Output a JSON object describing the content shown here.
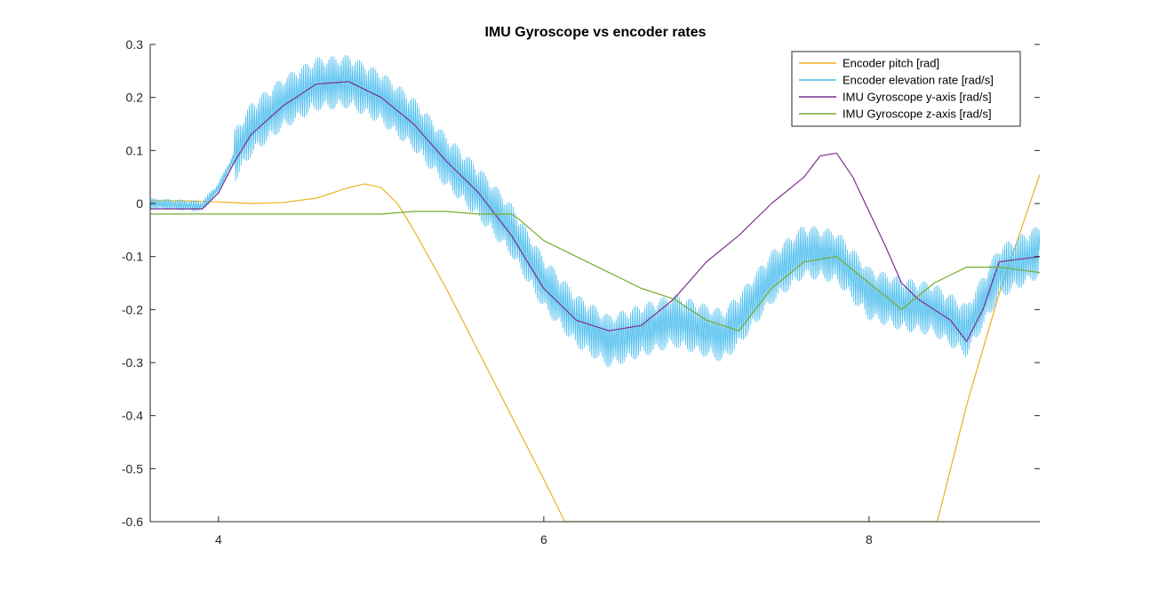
{
  "chart_data": {
    "type": "line",
    "title": "IMU Gyroscope vs encoder rates",
    "xlabel": "",
    "ylabel": "",
    "xlim": [
      3.58,
      9.05
    ],
    "ylim": [
      -0.6,
      0.3
    ],
    "xticks": [
      4,
      6,
      8
    ],
    "yticks": [
      0.3,
      0.2,
      0.1,
      0,
      -0.1,
      -0.2,
      -0.3,
      -0.4,
      -0.5,
      -0.6
    ],
    "xtick_labels": [
      "4",
      "6",
      "8"
    ],
    "ytick_labels": [
      "0.3",
      "0.2",
      "0.1",
      "0",
      "-0.1",
      "-0.2",
      "-0.3",
      "-0.4",
      "-0.5",
      "-0.6"
    ],
    "grid": false,
    "legend_position": "top-right",
    "series": [
      {
        "name": "Encoder pitch [rad]",
        "color": "#EDB120",
        "noise": 0,
        "x": [
          3.58,
          3.8,
          4.0,
          4.2,
          4.4,
          4.6,
          4.8,
          4.9,
          5.0,
          5.1,
          5.2,
          5.4,
          5.6,
          5.8,
          6.0,
          6.13,
          8.42,
          8.6,
          8.8,
          9.05
        ],
        "y": [
          0.005,
          0.005,
          0.003,
          0.0,
          0.002,
          0.01,
          0.03,
          0.037,
          0.03,
          0.0,
          -0.05,
          -0.16,
          -0.28,
          -0.4,
          -0.52,
          -0.6,
          -0.6,
          -0.38,
          -0.17,
          0.055
        ]
      },
      {
        "name": "Encoder elevation rate [rad/s]",
        "color": "#4DBEEE",
        "noise": 0.05,
        "x": [
          3.58,
          3.9,
          4.0,
          4.1,
          4.2,
          4.4,
          4.6,
          4.8,
          5.0,
          5.2,
          5.4,
          5.6,
          5.8,
          6.0,
          6.2,
          6.4,
          6.6,
          6.8,
          7.0,
          7.1,
          7.2,
          7.4,
          7.6,
          7.8,
          8.0,
          8.2,
          8.4,
          8.6,
          8.8,
          9.05
        ],
        "y": [
          0.0,
          -0.005,
          0.03,
          0.09,
          0.14,
          0.19,
          0.225,
          0.23,
          0.2,
          0.15,
          0.08,
          0.02,
          -0.05,
          -0.15,
          -0.22,
          -0.26,
          -0.24,
          -0.22,
          -0.24,
          -0.25,
          -0.22,
          -0.14,
          -0.09,
          -0.1,
          -0.17,
          -0.19,
          -0.2,
          -0.24,
          -0.13,
          -0.09
        ]
      },
      {
        "name": "IMU Gyroscope y-axis [rad/s]",
        "color": "#7E2F8E",
        "noise": 0,
        "x": [
          3.58,
          3.9,
          4.0,
          4.1,
          4.2,
          4.4,
          4.6,
          4.8,
          5.0,
          5.2,
          5.4,
          5.6,
          5.8,
          6.0,
          6.2,
          6.4,
          6.6,
          6.8,
          7.0,
          7.2,
          7.4,
          7.6,
          7.7,
          7.8,
          7.9,
          8.1,
          8.2,
          8.3,
          8.5,
          8.6,
          8.7,
          8.8,
          9.05
        ],
        "y": [
          -0.01,
          -0.01,
          0.02,
          0.08,
          0.13,
          0.185,
          0.225,
          0.23,
          0.2,
          0.15,
          0.08,
          0.02,
          -0.06,
          -0.16,
          -0.22,
          -0.24,
          -0.23,
          -0.18,
          -0.11,
          -0.06,
          0.0,
          0.05,
          0.09,
          0.095,
          0.05,
          -0.08,
          -0.15,
          -0.18,
          -0.22,
          -0.26,
          -0.2,
          -0.11,
          -0.1
        ]
      },
      {
        "name": "IMU Gyroscope z-axis [rad/s]",
        "color": "#77AC30",
        "noise": 0,
        "x": [
          3.58,
          4.0,
          4.2,
          4.4,
          4.6,
          4.8,
          5.0,
          5.2,
          5.4,
          5.6,
          5.8,
          5.85,
          6.0,
          6.2,
          6.4,
          6.6,
          6.8,
          7.0,
          7.2,
          7.4,
          7.6,
          7.8,
          8.0,
          8.2,
          8.4,
          8.6,
          8.8,
          9.05
        ],
        "y": [
          -0.02,
          -0.02,
          -0.02,
          -0.02,
          -0.02,
          -0.02,
          -0.02,
          -0.015,
          -0.015,
          -0.02,
          -0.02,
          -0.03,
          -0.07,
          -0.1,
          -0.13,
          -0.16,
          -0.18,
          -0.22,
          -0.24,
          -0.16,
          -0.11,
          -0.1,
          -0.15,
          -0.2,
          -0.15,
          -0.12,
          -0.12,
          -0.13
        ]
      }
    ]
  }
}
